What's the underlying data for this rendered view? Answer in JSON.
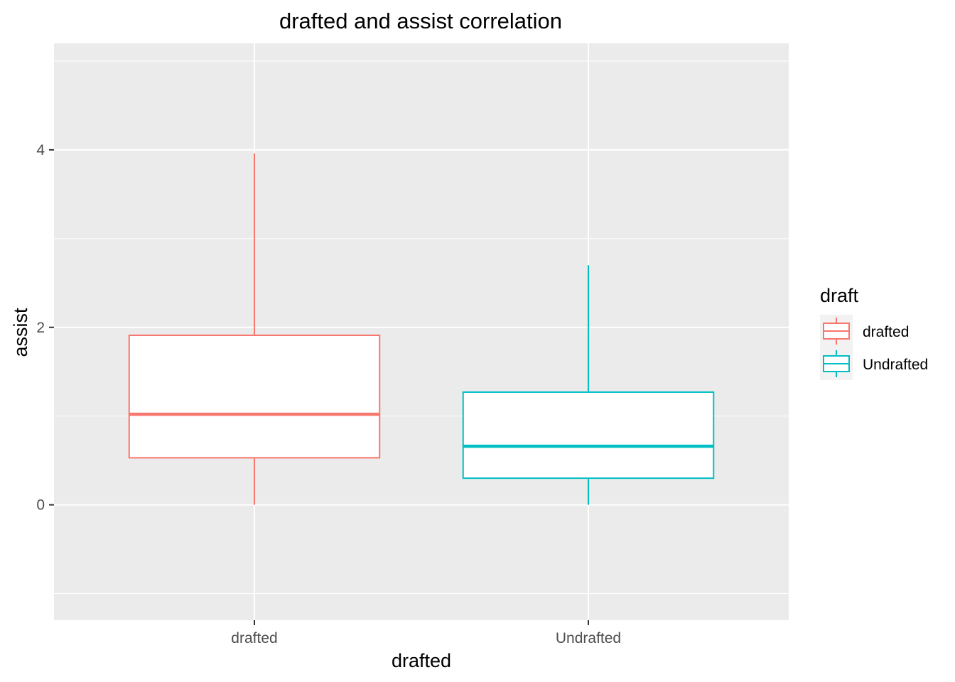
{
  "chart_data": {
    "type": "box",
    "title": "drafted and assist correlation",
    "xlabel": "drafted",
    "ylabel": "assist",
    "categories": [
      "drafted",
      "Undrafted"
    ],
    "ylim": [
      -1.3,
      5.2
    ],
    "yticks": [
      0,
      2,
      4
    ],
    "ytick_labels": [
      "0",
      "2",
      "4"
    ],
    "grid": true,
    "legend": {
      "title": "draft",
      "position": "right",
      "entries": [
        "drafted",
        "Undrafted"
      ]
    },
    "series": [
      {
        "category": "drafted",
        "min": 0.0,
        "q1": 0.53,
        "median": 1.02,
        "q3": 1.91,
        "max": 3.96,
        "color": "#F8766D"
      },
      {
        "category": "Undrafted",
        "min": 0.0,
        "q1": 0.3,
        "median": 0.66,
        "q3": 1.27,
        "max": 2.7,
        "color": "#00BFC4"
      }
    ],
    "panel_background": "#EBEBEB",
    "grid_color": "#FFFFFF"
  }
}
